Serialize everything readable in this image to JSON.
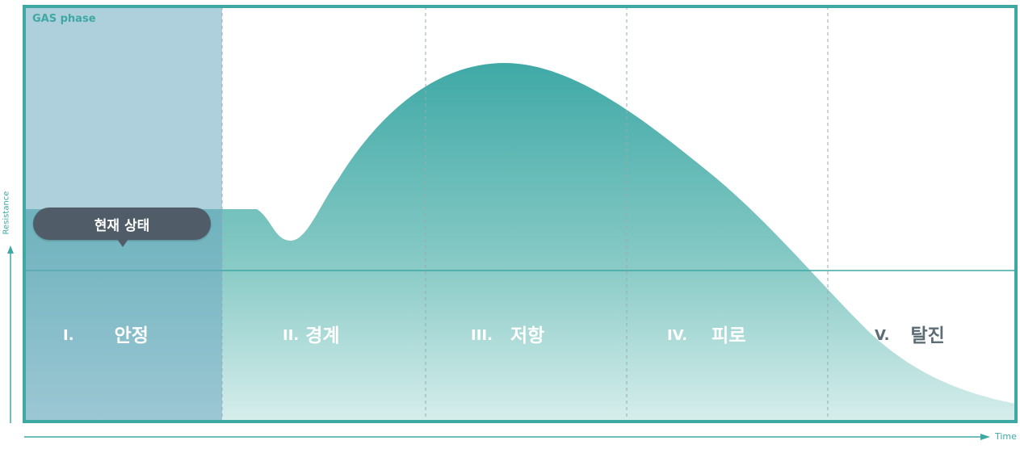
{
  "gas_title": "GAS phase",
  "current_state_label": "현재 상태",
  "axes": {
    "y_label": "Resistance",
    "x_label": "Time"
  },
  "stages": [
    {
      "num": "I.",
      "name": "안정"
    },
    {
      "num": "II.",
      "name": "경계"
    },
    {
      "num": "III.",
      "name": "저항"
    },
    {
      "num": "IV.",
      "name": "피로"
    },
    {
      "num": "V.",
      "name": "탈진"
    }
  ],
  "colors": {
    "frame": "#3ea8a3",
    "curve_top": "#3fa9a6",
    "curve_bottom": "#d3ecea",
    "stage_one_overlay": "#7fb2c6",
    "badge": "#505d68",
    "divider": "#9aaab0"
  }
}
